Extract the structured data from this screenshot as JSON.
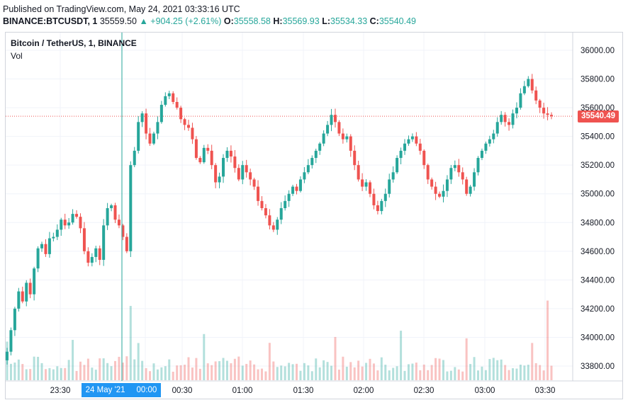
{
  "header": {
    "published": "Published on TradingView.com, May 24, 2021 03:33:16 UTC",
    "symbol": "BINANCE:BTCUSDT, 1",
    "price": "35559.50",
    "change": "▲ +904.25 (+2.61%)",
    "o_label": "O:",
    "o": "35558.58",
    "h_label": "H:",
    "h": "35569.93",
    "l_label": "L:",
    "l": "35534.33",
    "c_label": "C:",
    "c": "35540.49"
  },
  "legend": {
    "title": "Bitcoin / TetherUS, 1, BINANCE",
    "volume": "Vol"
  },
  "last_price_label": "35540.49",
  "crosshair_date_label": "24 May '21",
  "colors": {
    "up": "#26a69a",
    "down": "#ef5350",
    "crosshair": "#26a69a",
    "date_tag": "#2196f3",
    "price_line": "#ef5350"
  },
  "chart_data": {
    "type": "candlestick",
    "interval": "1 minute",
    "y_ticks": [
      "36000.00",
      "35800.00",
      "35600.00",
      "35400.00",
      "35200.00",
      "35000.00",
      "34800.00",
      "34600.00",
      "34400.00",
      "34200.00",
      "34000.00",
      "33800.00"
    ],
    "y_range": [
      33680,
      36080
    ],
    "x_ticks": [
      "23:30",
      "00:00",
      "00:30",
      "01:00",
      "01:30",
      "02:00",
      "02:30",
      "03:00",
      "03:30"
    ],
    "last_close": 35540.49,
    "series_close_approx": [
      33900,
      34050,
      34200,
      34320,
      34250,
      34380,
      34300,
      34480,
      34620,
      34650,
      34580,
      34690,
      34700,
      34750,
      34820,
      34780,
      34800,
      34860,
      34840,
      34760,
      34600,
      34520,
      34560,
      34620,
      34540,
      34780,
      34900,
      34920,
      34820,
      34780,
      34700,
      34600,
      35200,
      35300,
      35500,
      35560,
      35420,
      35350,
      35420,
      35500,
      35620,
      35680,
      35700,
      35640,
      35600,
      35520,
      35480,
      35460,
      35380,
      35250,
      35220,
      35320,
      35300,
      35200,
      35080,
      35120,
      35250,
      35300,
      35260,
      35180,
      35100,
      35200,
      35150,
      35100,
      35050,
      34950,
      34900,
      34850,
      34780,
      34750,
      34820,
      34900,
      34950,
      35000,
      35050,
      35020,
      35100,
      35150,
      35200,
      35250,
      35300,
      35350,
      35420,
      35480,
      35550,
      35500,
      35420,
      35380,
      35400,
      35300,
      35200,
      35100,
      35050,
      35080,
      35000,
      34920,
      34880,
      34950,
      35000,
      35100,
      35150,
      35250,
      35300,
      35350,
      35380,
      35400,
      35350,
      35300,
      35200,
      35100,
      35050,
      35000,
      34980,
      35020,
      35100,
      35180,
      35200,
      35150,
      35100,
      35000,
      35050,
      35150,
      35250,
      35300,
      35350,
      35380,
      35420,
      35500,
      35550,
      35500,
      35480,
      35560,
      35600,
      35700,
      35750,
      35800,
      35720,
      35650,
      35600,
      35560,
      35550,
      35540.49
    ]
  }
}
